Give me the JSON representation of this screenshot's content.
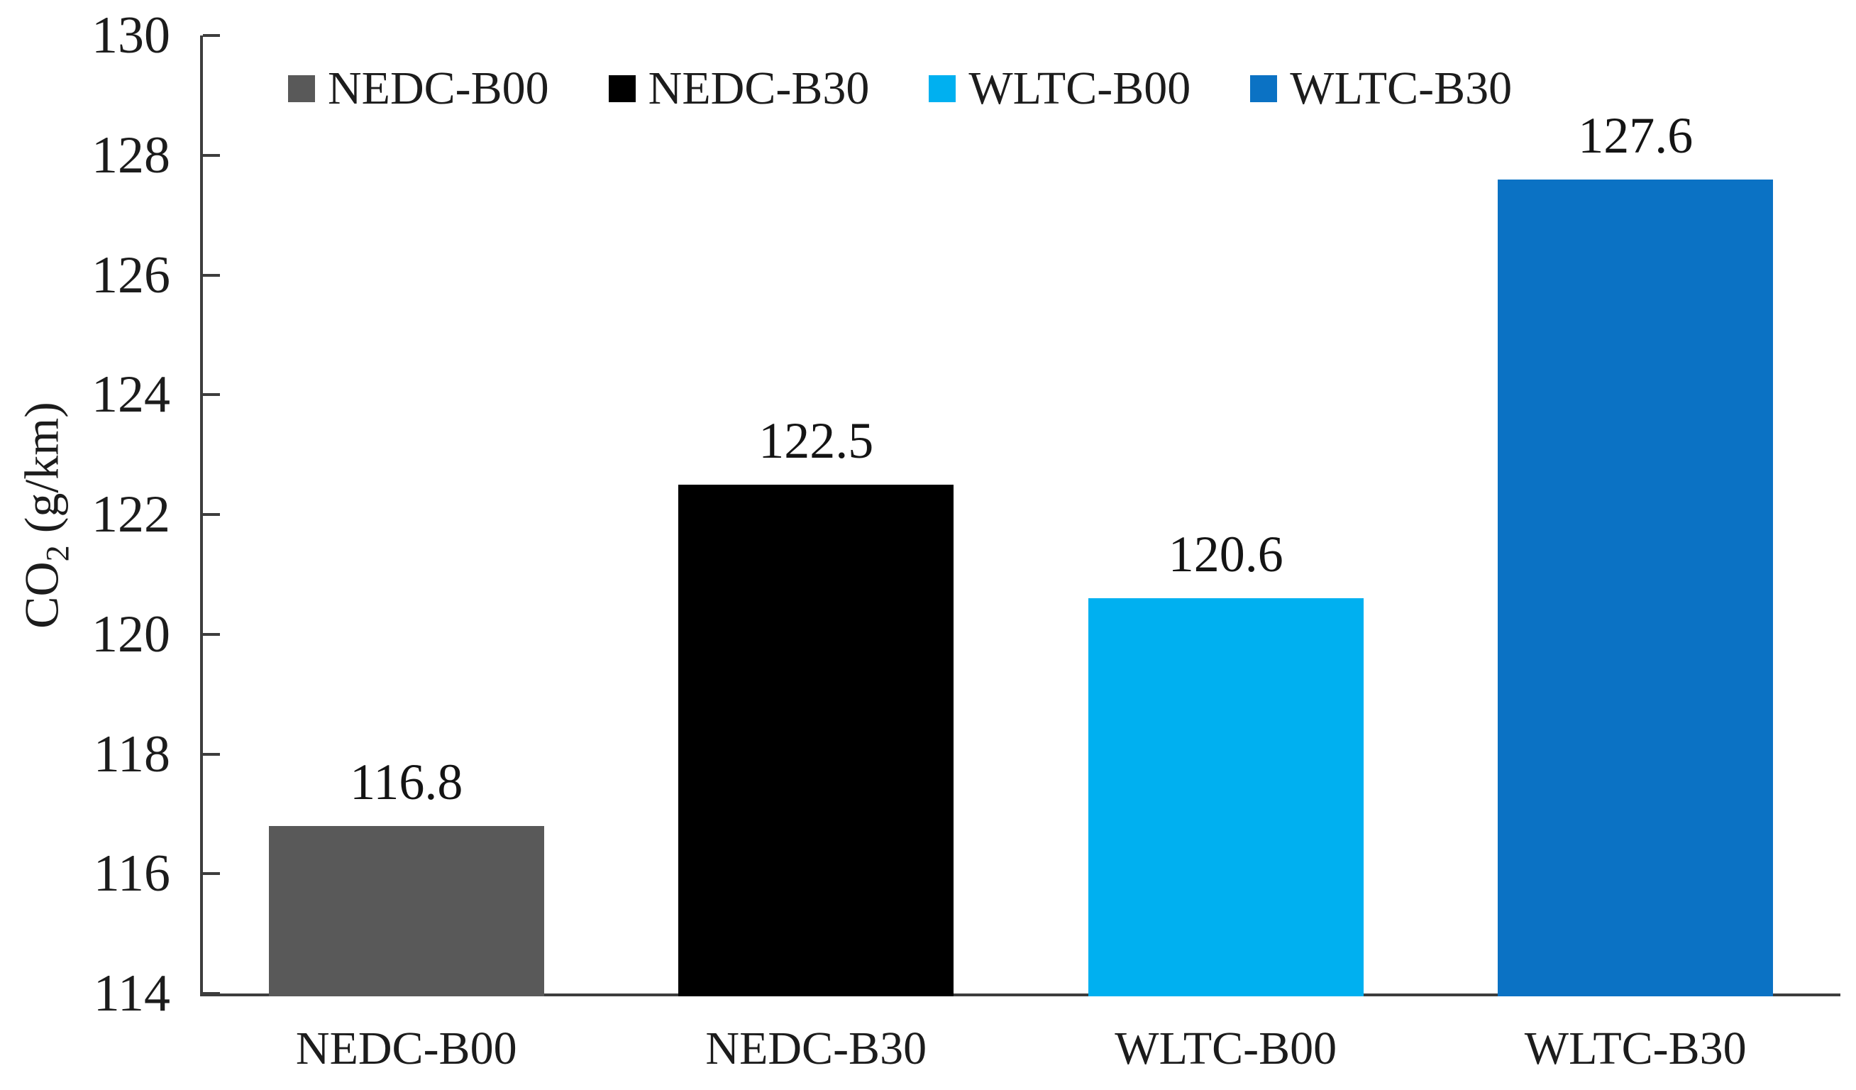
{
  "chart_data": {
    "type": "bar",
    "title": "",
    "categories": [
      "NEDC-B00",
      "NEDC-B30",
      "WLTC-B00",
      "WLTC-B30"
    ],
    "values": [
      116.8,
      122.5,
      120.6,
      127.6
    ],
    "data_labels": [
      "116.8",
      "122.5",
      "120.6",
      "127.6"
    ],
    "bar_colors": [
      "#595959",
      "#000000",
      "#00B0F0",
      "#0B72C4"
    ],
    "series": [
      {
        "name": "NEDC-B00",
        "color": "#595959",
        "values": [
          116.8
        ]
      },
      {
        "name": "NEDC-B30",
        "color": "#000000",
        "values": [
          122.5
        ]
      },
      {
        "name": "WLTC-B00",
        "color": "#00B0F0",
        "values": [
          120.6
        ]
      },
      {
        "name": "WLTC-B30",
        "color": "#0B72C4",
        "values": [
          127.6
        ]
      }
    ],
    "legend": {
      "position": "top",
      "entries": [
        {
          "label": "NEDC-B00",
          "color": "#595959"
        },
        {
          "label": "NEDC-B30",
          "color": "#000000"
        },
        {
          "label": "WLTC-B00",
          "color": "#00B0F0"
        },
        {
          "label": "WLTC-B30",
          "color": "#0B72C4"
        }
      ]
    },
    "xlabel": "",
    "ylabel": "CO2 (g/km)",
    "ylabel_parts": {
      "prefix": "CO",
      "sub": "2",
      "suffix": " (g/km)"
    },
    "y_axis": {
      "min": 114,
      "max": 130,
      "step": 2,
      "ticks": [
        130,
        128,
        126,
        124,
        122,
        120,
        118,
        116,
        114
      ]
    },
    "grid": false,
    "axis_color": "#3d3d3d"
  }
}
